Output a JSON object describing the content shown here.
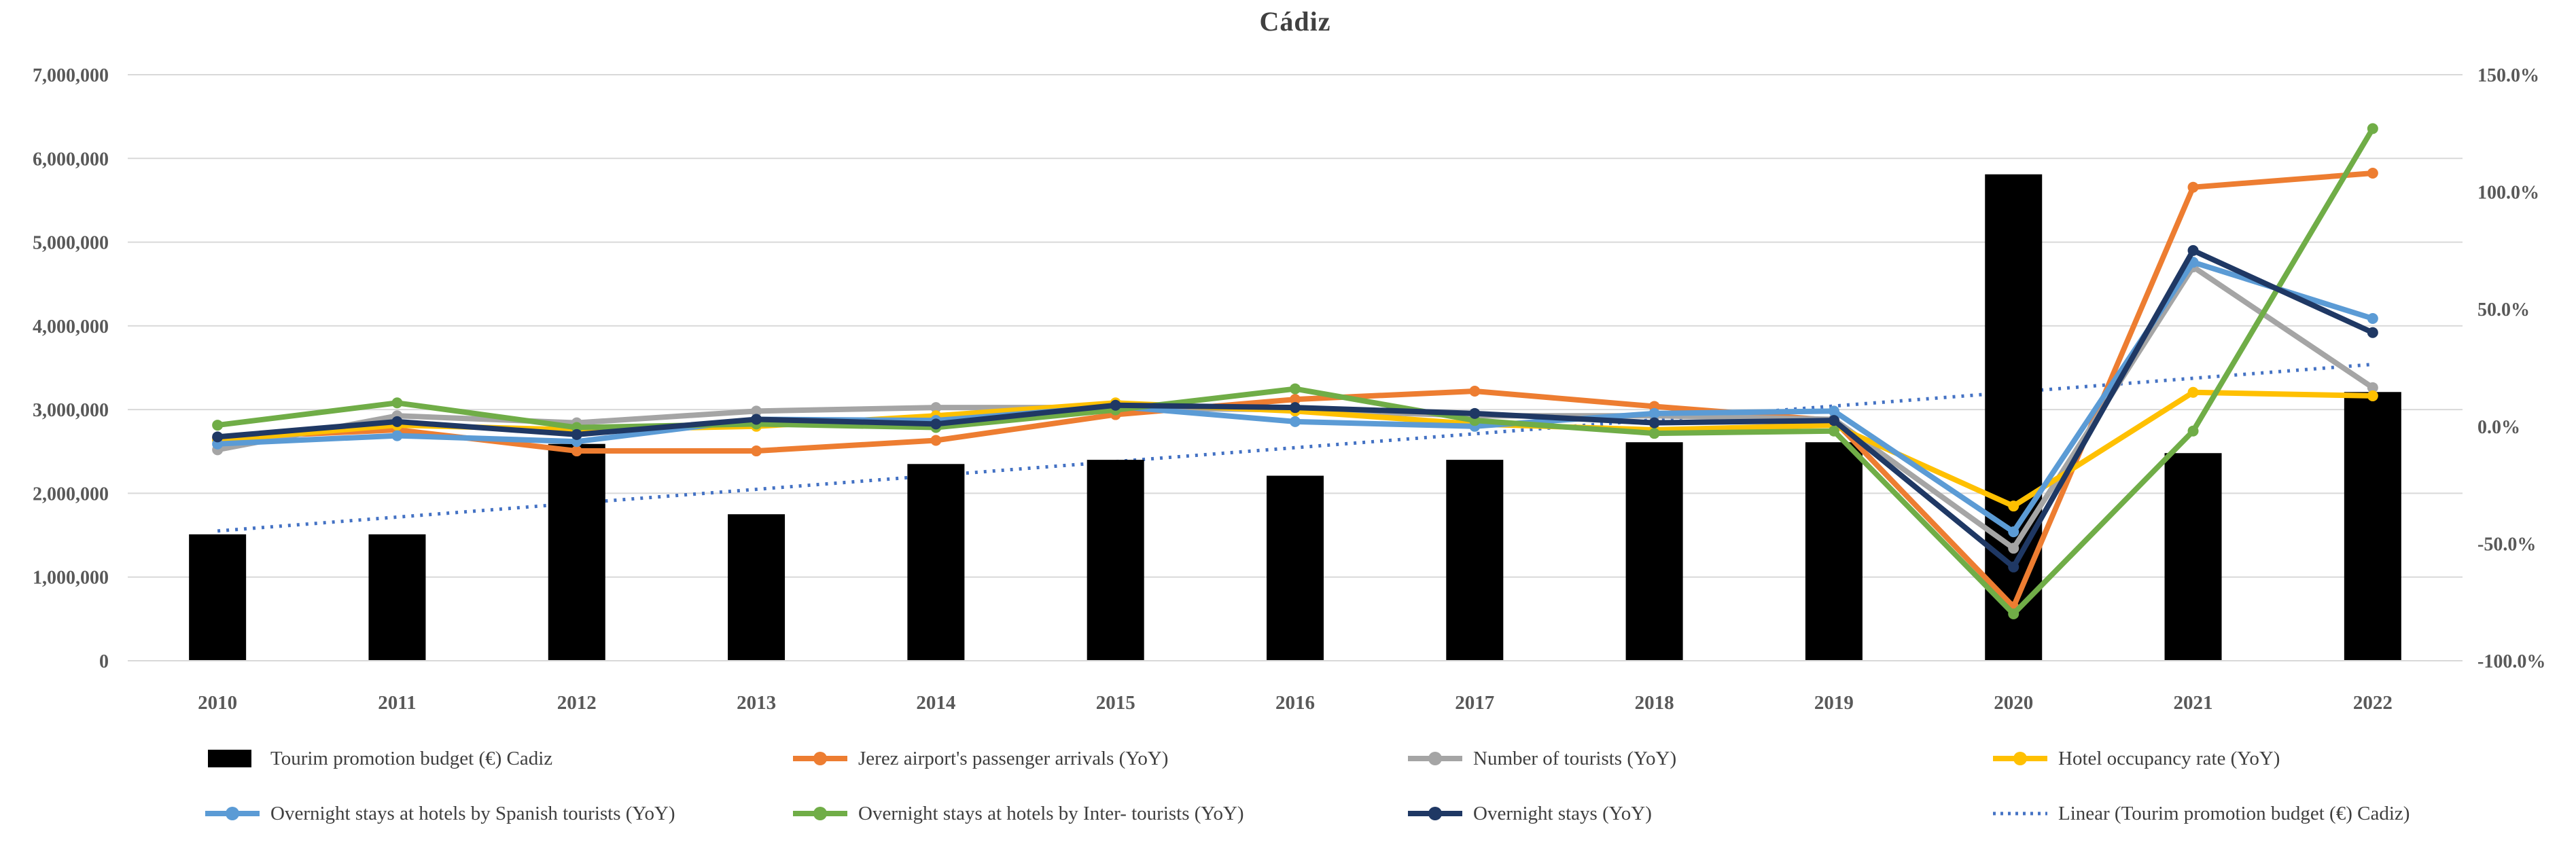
{
  "chart_data": {
    "type": "combo-bar-line",
    "title": "Cádiz",
    "categories": [
      "2010",
      "2011",
      "2012",
      "2013",
      "2014",
      "2015",
      "2016",
      "2017",
      "2018",
      "2019",
      "2020",
      "2021",
      "2022"
    ],
    "left_axis": {
      "label": "",
      "min": 0,
      "max": 7000000,
      "tick_step": 1000000,
      "tick_labels": [
        "0",
        "1,000,000",
        "2,000,000",
        "3,000,000",
        "4,000,000",
        "5,000,000",
        "6,000,000",
        "7,000,000"
      ]
    },
    "right_axis": {
      "label": "",
      "min": -100,
      "max": 150,
      "tick_step": 50,
      "tick_labels": [
        "-100.0%",
        "-50.0%",
        "0.0%",
        "50.0%",
        "100.0%",
        "150.0%"
      ]
    },
    "grid": "horizontal-only",
    "bar_series": {
      "name": "Tourim promotion budget (€) Cadiz",
      "color": "#000000",
      "axis": "left",
      "values": [
        1510000,
        1510000,
        2590000,
        1750000,
        2350000,
        2400000,
        2210000,
        2400000,
        2610000,
        2610000,
        5810000,
        2480000,
        3210000
      ]
    },
    "line_series": [
      {
        "name": "Jerez airport's passenger arrivals (YoY)",
        "color": "#ED7D31",
        "axis": "right",
        "values_pct": [
          -5,
          -1.5,
          -10.5,
          -10.5,
          -6,
          5,
          11.5,
          15,
          8.5,
          2.5,
          -77,
          102,
          108
        ]
      },
      {
        "name": "Number of tourists (YoY)",
        "color": "#A5A5A5",
        "axis": "right",
        "values_pct": [
          -10,
          4.5,
          1.5,
          6.5,
          8,
          8,
          7,
          4.5,
          4.5,
          3,
          -52,
          68,
          16.5
        ]
      },
      {
        "name": "Hotel occupancy rate (YoY)",
        "color": "#FFC000",
        "axis": "right",
        "values_pct": [
          -6,
          0.5,
          -1.5,
          0,
          4.5,
          10,
          6.5,
          1,
          -1.5,
          0.5,
          -34,
          14.5,
          13
        ]
      },
      {
        "name": "Overnight stays at hotels by Spanish tourists (YoY)",
        "color": "#5B9BD5",
        "axis": "right",
        "values_pct": [
          -7.5,
          -4,
          -6.5,
          3,
          2.5,
          8.5,
          2,
          0,
          5.5,
          6.5,
          -45,
          70,
          46
        ]
      },
      {
        "name": "Overnight stays at hotels by Inter- tourists (YoY)",
        "color": "#70AD47",
        "axis": "right",
        "values_pct": [
          0.5,
          10,
          -0.5,
          1,
          -0.5,
          7,
          16,
          2.5,
          -3,
          -2,
          -80,
          -2,
          127
        ]
      },
      {
        "name": "Overnight stays (YoY)",
        "color": "#1F3864",
        "axis": "right",
        "values_pct": [
          -4.5,
          2,
          -3.5,
          3,
          1,
          9,
          8,
          5.5,
          1.5,
          2.5,
          -60,
          75,
          40
        ]
      }
    ],
    "trendline": {
      "name": "Linear (Tourim promotion budget (€) Cadiz)",
      "color": "#4472C4",
      "style": "dotted",
      "axis": "left",
      "start_value": 1550000,
      "end_value": 3540000
    },
    "legend": [
      {
        "label": "Tourim promotion budget (€) Cadiz",
        "swatch": "bar",
        "color": "#000000"
      },
      {
        "label": "Jerez airport's passenger arrivals (YoY)",
        "swatch": "line",
        "color": "#ED7D31"
      },
      {
        "label": "Number of tourists (YoY)",
        "swatch": "line",
        "color": "#A5A5A5"
      },
      {
        "label": "Hotel occupancy rate (YoY)",
        "swatch": "line",
        "color": "#FFC000"
      },
      {
        "label": "Overnight stays at hotels by Spanish tourists (YoY)",
        "swatch": "line",
        "color": "#5B9BD5"
      },
      {
        "label": "Overnight stays at hotels by Inter- tourists (YoY)",
        "swatch": "line",
        "color": "#70AD47"
      },
      {
        "label": "Overnight stays (YoY)",
        "swatch": "line",
        "color": "#1F3864"
      },
      {
        "label": "Linear (Tourim promotion budget (€) Cadiz)",
        "swatch": "dotted",
        "color": "#4472C4"
      }
    ],
    "colors": {
      "gridline": "#D9D9D9",
      "axis_text": "#595959",
      "title_text": "#404040",
      "legend_text": "#3f3f3f",
      "background": "#FFFFFF"
    }
  }
}
